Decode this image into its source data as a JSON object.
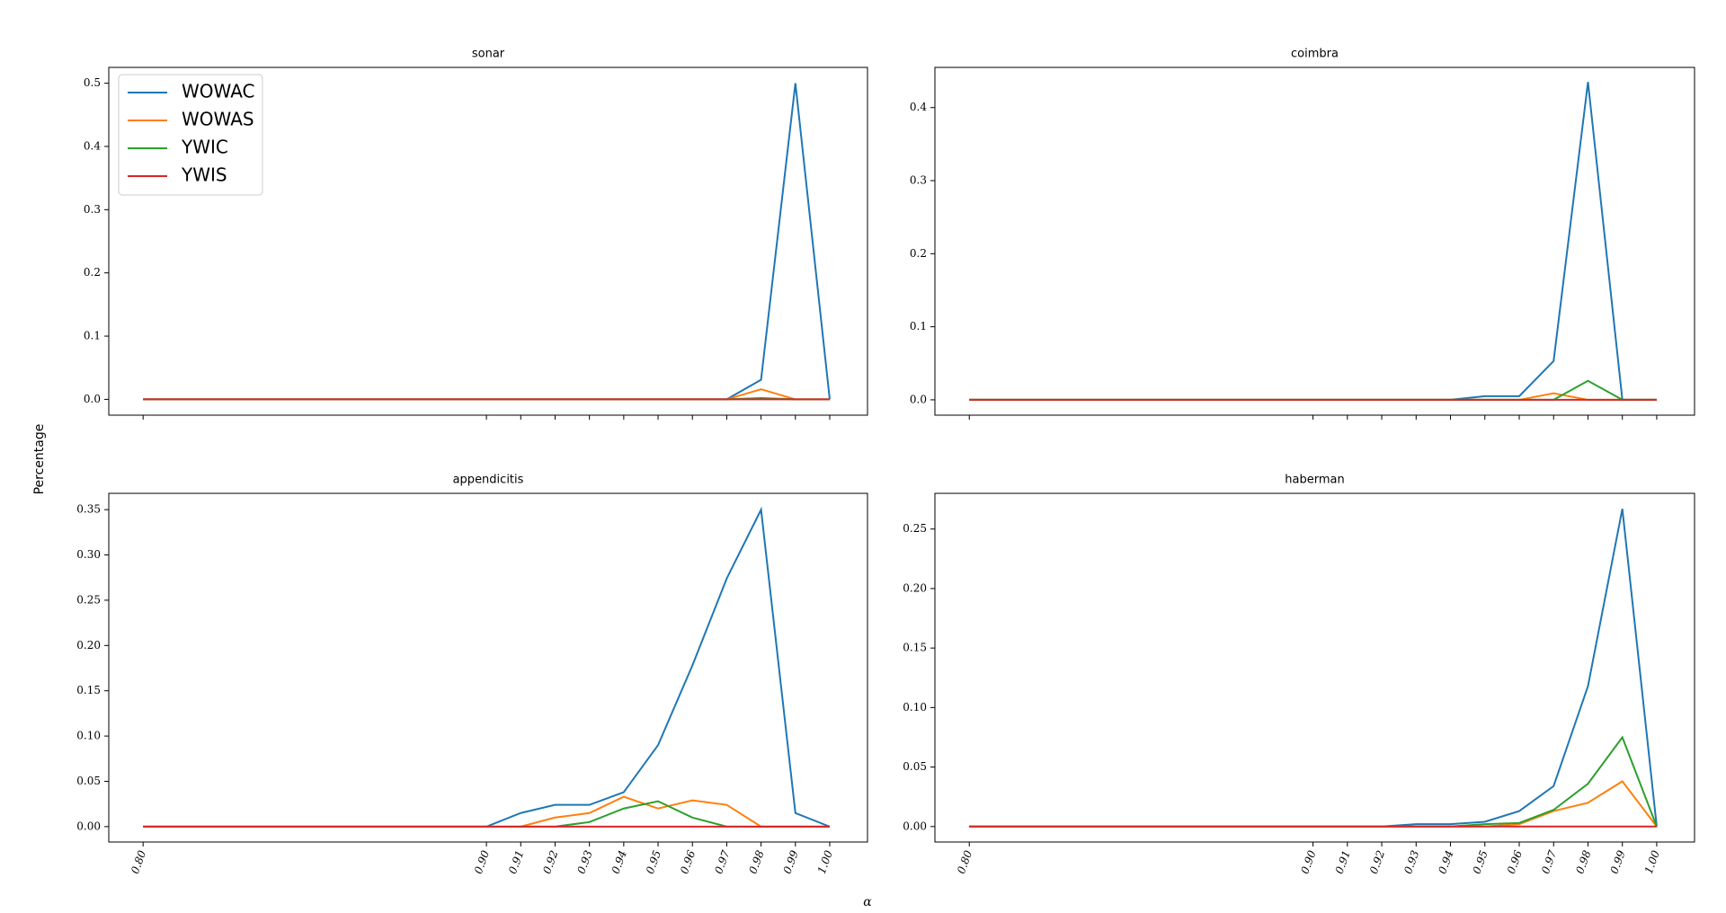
{
  "x_label": "α",
  "y_label": "Percentage",
  "x": [
    0.8,
    0.9,
    0.91,
    0.92,
    0.93,
    0.94,
    0.95,
    0.96,
    0.97,
    0.98,
    0.99,
    1.0
  ],
  "xlim": [
    0.79,
    1.011
  ],
  "xticks": [
    {
      "value": 0.8,
      "label": "0.80"
    },
    {
      "value": 0.9,
      "label": "0.90"
    },
    {
      "value": 0.91,
      "label": "0.91"
    },
    {
      "value": 0.92,
      "label": "0.92"
    },
    {
      "value": 0.93,
      "label": "0.93"
    },
    {
      "value": 0.94,
      "label": "0.94"
    },
    {
      "value": 0.95,
      "label": "0.95"
    },
    {
      "value": 0.96,
      "label": "0.96"
    },
    {
      "value": 0.97,
      "label": "0.97"
    },
    {
      "value": 0.98,
      "label": "0.98"
    },
    {
      "value": 0.99,
      "label": "0.99"
    },
    {
      "value": 1.0,
      "label": "1.00"
    }
  ],
  "chart_data": [
    {
      "type": "line",
      "title": "sonar",
      "legend": "upper left",
      "ylim": [
        -0.025,
        0.525
      ],
      "yticks": [
        {
          "value": 0,
          "label": "0.0"
        },
        {
          "value": 0.1,
          "label": "0.1"
        },
        {
          "value": 0.2,
          "label": "0.2"
        },
        {
          "value": 0.3,
          "label": "0.3"
        },
        {
          "value": 0.4,
          "label": "0.4"
        },
        {
          "value": 0.5,
          "label": "0.5"
        }
      ],
      "series": [
        {
          "name": "WOWAC",
          "color": "#1f77b4",
          "values": [
            0,
            0,
            0,
            0,
            0,
            0,
            0,
            0,
            0,
            0.031,
            0.5,
            0
          ]
        },
        {
          "name": "WOWAS",
          "color": "#ff7f0e",
          "values": [
            0,
            0,
            0,
            0,
            0,
            0,
            0,
            0,
            0,
            0.016,
            0,
            0
          ]
        },
        {
          "name": "YWIC",
          "color": "#2ca02c",
          "values": [
            0,
            0,
            0,
            0,
            0,
            0,
            0,
            0,
            0,
            0.002,
            0,
            0
          ]
        },
        {
          "name": "YWIS",
          "color": "#d62728",
          "values": [
            0,
            0,
            0,
            0,
            0,
            0,
            0,
            0,
            0,
            0,
            0,
            0
          ]
        }
      ]
    },
    {
      "type": "line",
      "title": "coimbra",
      "ylim": [
        -0.021,
        0.455
      ],
      "yticks": [
        {
          "value": 0,
          "label": "0.0"
        },
        {
          "value": 0.1,
          "label": "0.1"
        },
        {
          "value": 0.2,
          "label": "0.2"
        },
        {
          "value": 0.3,
          "label": "0.3"
        },
        {
          "value": 0.4,
          "label": "0.4"
        }
      ],
      "series": [
        {
          "color": "#1f77b4",
          "values": [
            0,
            0,
            0,
            0,
            0,
            0,
            0.005,
            0.005,
            0.053,
            0.435,
            0,
            0
          ]
        },
        {
          "color": "#ff7f0e",
          "values": [
            0,
            0,
            0,
            0,
            0,
            0,
            0,
            0,
            0.009,
            0,
            0,
            0
          ]
        },
        {
          "color": "#2ca02c",
          "values": [
            0,
            0,
            0,
            0,
            0,
            0,
            0,
            0,
            0,
            0.026,
            0,
            0
          ]
        },
        {
          "color": "#d62728",
          "values": [
            0,
            0,
            0,
            0,
            0,
            0,
            0,
            0,
            0,
            0,
            0,
            0
          ]
        }
      ]
    },
    {
      "type": "line",
      "title": "appendicitis",
      "ylim": [
        -0.017,
        0.368
      ],
      "yticks": [
        {
          "value": 0,
          "label": "0.00"
        },
        {
          "value": 0.05,
          "label": "0.05"
        },
        {
          "value": 0.1,
          "label": "0.10"
        },
        {
          "value": 0.15,
          "label": "0.15"
        },
        {
          "value": 0.2,
          "label": "0.20"
        },
        {
          "value": 0.25,
          "label": "0.25"
        },
        {
          "value": 0.3,
          "label": "0.30"
        },
        {
          "value": 0.35,
          "label": "0.35"
        }
      ],
      "series": [
        {
          "color": "#1f77b4",
          "values": [
            0,
            0,
            0.015,
            0.024,
            0.024,
            0.038,
            0.09,
            0.178,
            0.274,
            0.35,
            0.015,
            0
          ]
        },
        {
          "color": "#ff7f0e",
          "values": [
            0,
            0,
            0,
            0.01,
            0.015,
            0.033,
            0.02,
            0.029,
            0.024,
            0,
            0,
            0
          ]
        },
        {
          "color": "#2ca02c",
          "values": [
            0,
            0,
            0,
            0,
            0.005,
            0.02,
            0.028,
            0.01,
            0,
            0,
            0,
            0
          ]
        },
        {
          "color": "#d62728",
          "values": [
            0,
            0,
            0,
            0,
            0,
            0,
            0,
            0,
            0,
            0,
            0,
            0
          ]
        }
      ]
    },
    {
      "type": "line",
      "title": "haberman",
      "ylim": [
        -0.013,
        0.28
      ],
      "yticks": [
        {
          "value": 0,
          "label": "0.00"
        },
        {
          "value": 0.05,
          "label": "0.05"
        },
        {
          "value": 0.1,
          "label": "0.10"
        },
        {
          "value": 0.15,
          "label": "0.15"
        },
        {
          "value": 0.2,
          "label": "0.20"
        },
        {
          "value": 0.25,
          "label": "0.25"
        }
      ],
      "series": [
        {
          "color": "#1f77b4",
          "values": [
            0,
            0,
            0,
            0,
            0.002,
            0.002,
            0.004,
            0.013,
            0.034,
            0.118,
            0.267,
            0
          ]
        },
        {
          "color": "#ff7f0e",
          "values": [
            0,
            0,
            0,
            0,
            0,
            0,
            0,
            0.002,
            0.013,
            0.02,
            0.038,
            0
          ]
        },
        {
          "color": "#2ca02c",
          "values": [
            0,
            0,
            0,
            0,
            0,
            0,
            0.002,
            0.003,
            0.014,
            0.036,
            0.075,
            0
          ]
        },
        {
          "color": "#d62728",
          "values": [
            0,
            0,
            0,
            0,
            0,
            0,
            0,
            0,
            0,
            0,
            0,
            0
          ]
        }
      ]
    }
  ]
}
